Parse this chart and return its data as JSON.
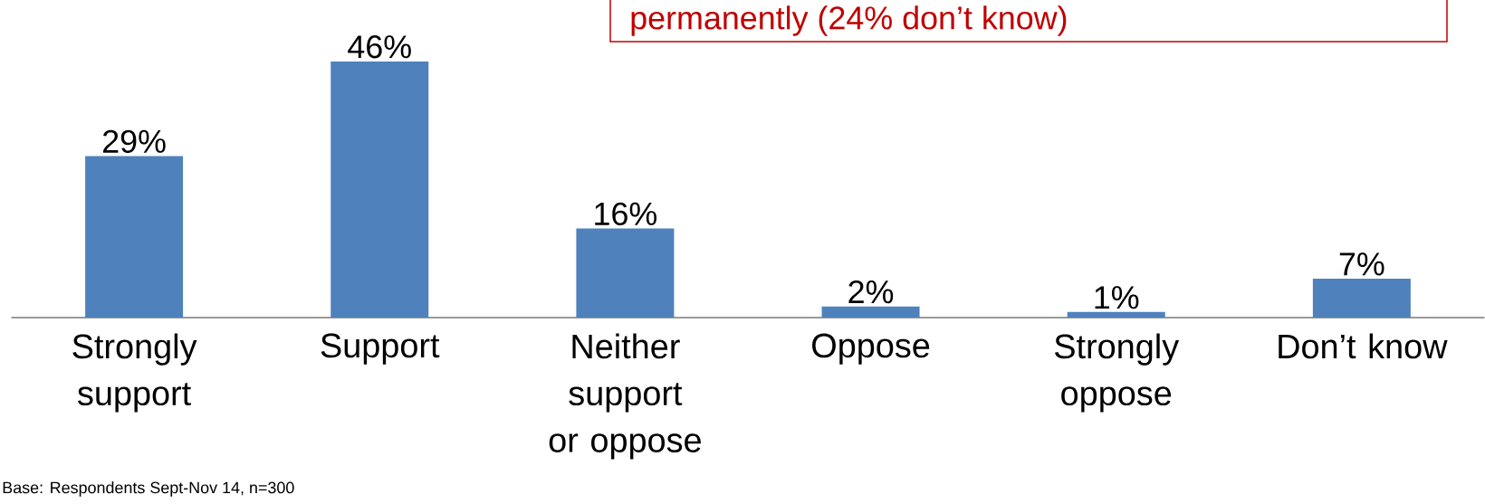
{
  "chart_data": {
    "type": "bar",
    "categories": [
      "Strongly support",
      "Support",
      "Neither support or oppose",
      "Oppose",
      "Strongly oppose",
      "Don’t know"
    ],
    "values": [
      29,
      46,
      16,
      2,
      1,
      7
    ],
    "color": "#4f81bd",
    "data_labels": true,
    "value_labels": [
      "29%",
      "46%",
      "16%",
      "2%",
      "1%",
      "7%"
    ],
    "annotations": [
      "permanently (24% don’t know)",
      "Base: Respondents Sept-Nov 14, n=300"
    ]
  }
}
